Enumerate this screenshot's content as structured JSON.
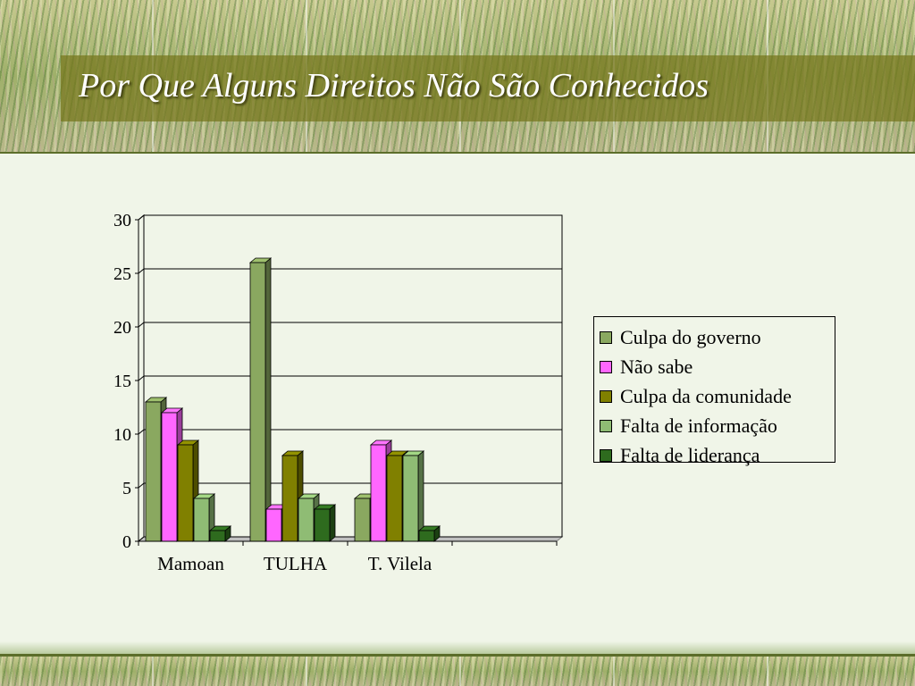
{
  "slide": {
    "title": "Por Que Alguns Direitos Não São Conhecidos"
  },
  "chart_data": {
    "type": "bar",
    "categories": [
      "Mamoan",
      "TULHA",
      "T. Vilela"
    ],
    "series": [
      {
        "name": "Culpa do governo",
        "values": [
          13,
          26,
          4
        ],
        "color": "#8aa860"
      },
      {
        "name": "Não sabe",
        "values": [
          12,
          3,
          9
        ],
        "color": "#ff66ff"
      },
      {
        "name": "Culpa da comunidade",
        "values": [
          9,
          8,
          8
        ],
        "color": "#808000"
      },
      {
        "name": "Falta de informação",
        "values": [
          4,
          4,
          8
        ],
        "color": "#8fbc74"
      },
      {
        "name": "Falta de liderança",
        "values": [
          1,
          3,
          1
        ],
        "color": "#2e6b1e"
      }
    ],
    "ylim": [
      0,
      30
    ],
    "yticks": [
      0,
      5,
      10,
      15,
      20,
      25,
      30
    ],
    "grid": true,
    "legend_position": "right",
    "three_d": true
  }
}
